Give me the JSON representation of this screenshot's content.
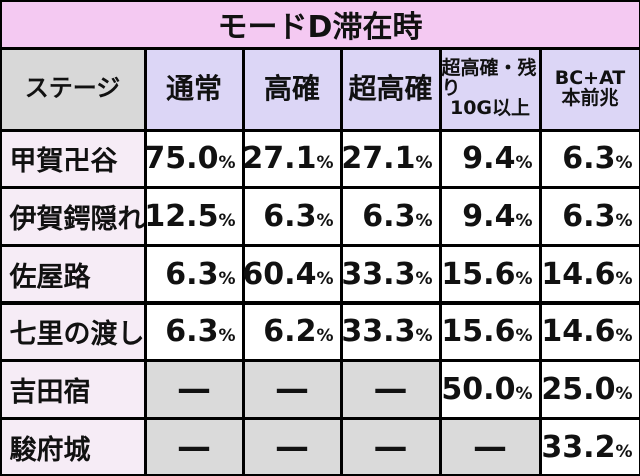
{
  "table": {
    "title": "モードD滞在時",
    "header": [
      [
        "ステージ"
      ],
      [
        "通常"
      ],
      [
        "高確"
      ],
      [
        "超高確"
      ],
      [
        "超高確・残り",
        "10G以上"
      ],
      [
        "BC+AT",
        "本前兆"
      ]
    ],
    "rows": [
      [
        "甲賀卍谷",
        "75.0%",
        "27.1%",
        "27.1%",
        "9.4%",
        "6.3%"
      ],
      [
        "伊賀鍔隠れ",
        "12.5%",
        "6.3%",
        "6.3%",
        "9.4%",
        "6.3%"
      ],
      [
        "佐屋路",
        "6.3%",
        "60.4%",
        "33.3%",
        "15.6%",
        "14.6%"
      ],
      [
        "七里の渡し",
        "6.3%",
        "6.2%",
        "33.3%",
        "15.6%",
        "14.6%"
      ],
      [
        "吉田宿",
        "—",
        "—",
        "—",
        "50.0%",
        "25.0%"
      ],
      [
        "駿府城",
        "—",
        "—",
        "—",
        "—",
        "33.2%"
      ]
    ]
  }
}
